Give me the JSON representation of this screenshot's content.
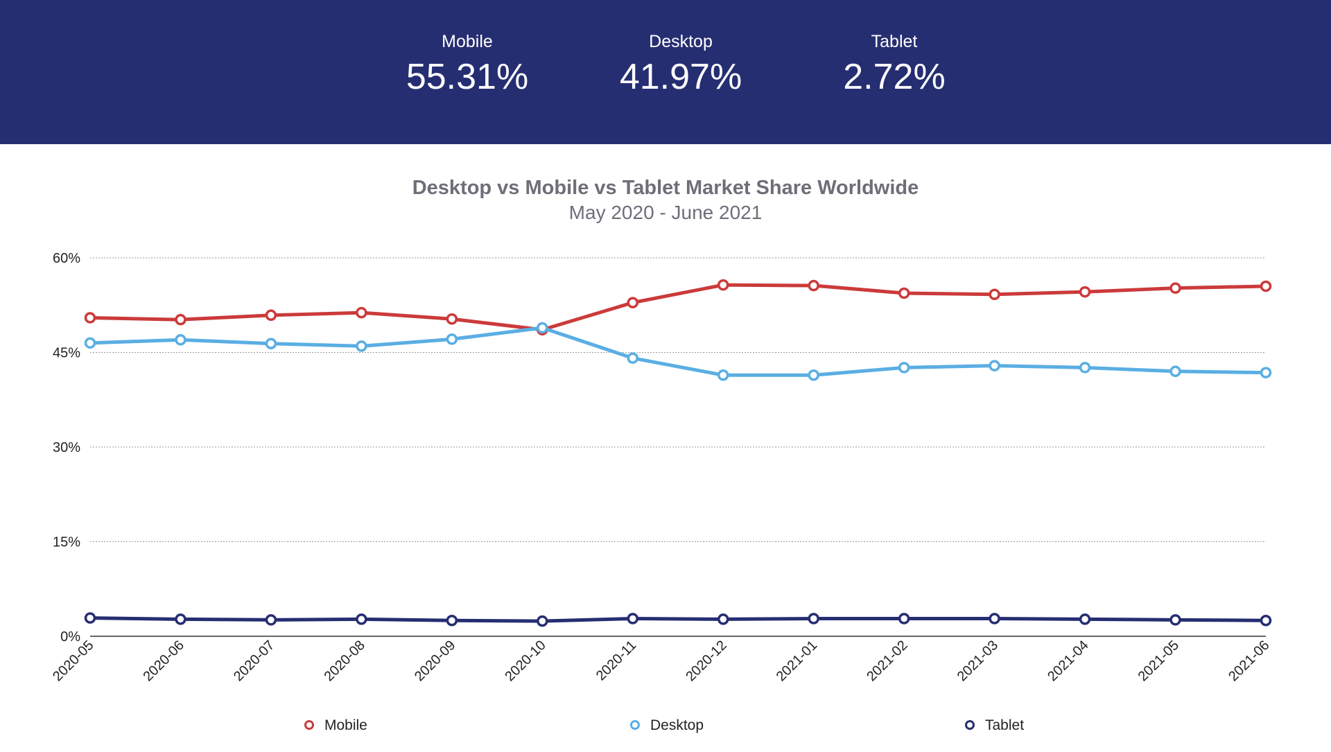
{
  "summary": [
    {
      "label": "Mobile",
      "value": "55.31%"
    },
    {
      "label": "Desktop",
      "value": "41.97%"
    },
    {
      "label": "Tablet",
      "value": "2.72%"
    }
  ],
  "chart_data": {
    "type": "line",
    "title": "Desktop vs Mobile vs Tablet Market Share Worldwide",
    "subtitle": "May 2020 - June 2021",
    "categories": [
      "2020-05",
      "2020-06",
      "2020-07",
      "2020-08",
      "2020-09",
      "2020-10",
      "2020-11",
      "2020-12",
      "2021-01",
      "2021-02",
      "2021-03",
      "2021-04",
      "2021-05",
      "2021-06"
    ],
    "y_ticks": [
      "0%",
      "15%",
      "30%",
      "45%",
      "60%"
    ],
    "ylim": [
      0,
      60
    ],
    "grid": true,
    "legend_position": "bottom",
    "series": [
      {
        "name": "Mobile",
        "color": "#cc3a3a",
        "values": [
          50.5,
          50.2,
          50.9,
          51.3,
          50.3,
          48.6,
          52.9,
          55.7,
          55.6,
          54.4,
          54.2,
          54.6,
          55.2,
          55.5
        ]
      },
      {
        "name": "Desktop",
        "color": "#5aaee3",
        "values": [
          46.5,
          47.0,
          46.4,
          46.0,
          47.1,
          48.9,
          44.1,
          41.4,
          41.4,
          42.6,
          42.9,
          42.6,
          42.0,
          41.8
        ]
      },
      {
        "name": "Tablet",
        "color": "#262e72",
        "values": [
          2.9,
          2.7,
          2.6,
          2.7,
          2.5,
          2.4,
          2.8,
          2.7,
          2.8,
          2.8,
          2.8,
          2.7,
          2.6,
          2.5
        ]
      }
    ]
  }
}
